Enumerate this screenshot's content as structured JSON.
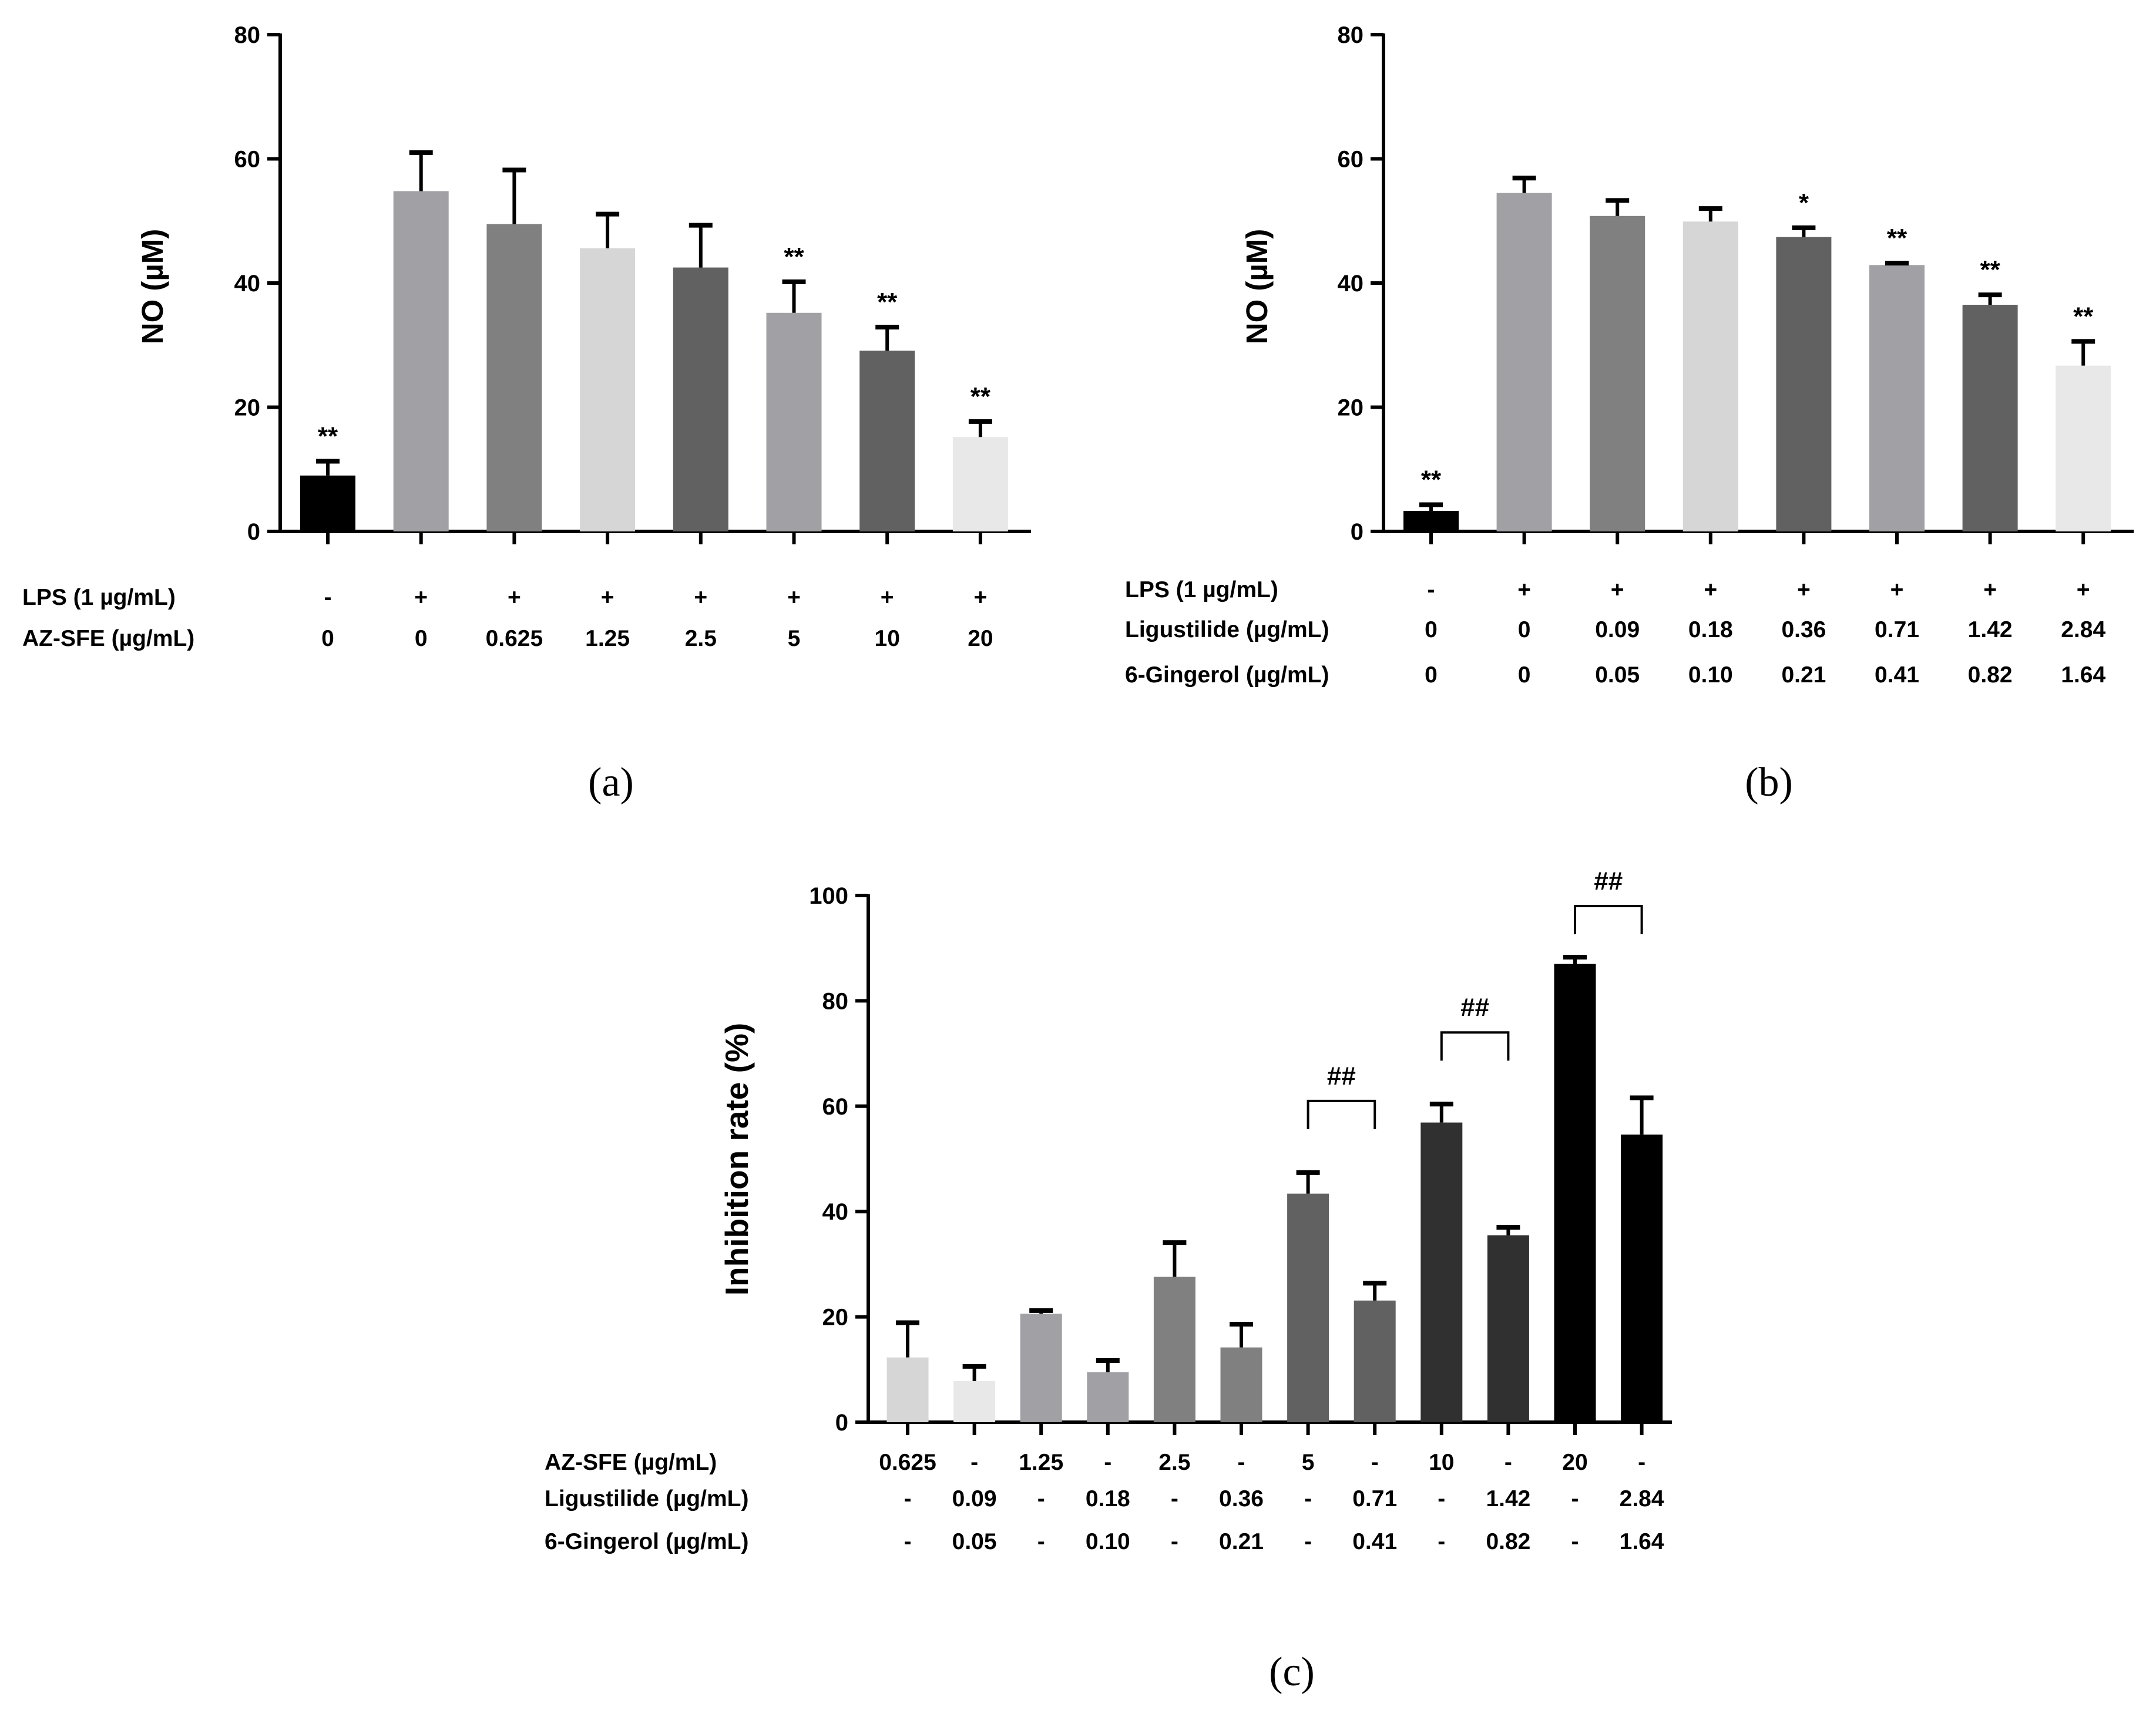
{
  "chart_data": [
    {
      "panel_label": "(a)",
      "type": "bar",
      "ylabel": "NO (µM)",
      "ylim": [
        0,
        80
      ],
      "yticks": [
        "0",
        "20",
        "40",
        "60",
        "80"
      ],
      "bars": [
        {
          "value": 9,
          "error": 2.3,
          "color": "#000000",
          "significance": "**"
        },
        {
          "value": 54.8,
          "error": 6.2,
          "color": "#a0a0a5",
          "significance": ""
        },
        {
          "value": 49.5,
          "error": 8.7,
          "color": "#808080",
          "significance": ""
        },
        {
          "value": 45.6,
          "error": 5.5,
          "color": "#d6d6d6",
          "significance": ""
        },
        {
          "value": 42.5,
          "error": 6.8,
          "color": "#616161",
          "significance": ""
        },
        {
          "value": 35.2,
          "error": 5,
          "color": "#a0a0a5",
          "significance": "**"
        },
        {
          "value": 29.1,
          "error": 3.8,
          "color": "#616161",
          "significance": "**"
        },
        {
          "value": 15.2,
          "error": 2.5,
          "color": "#e8e8e8",
          "significance": "**"
        }
      ],
      "table": [
        {
          "label": "LPS (1 µg/mL)",
          "values": [
            "-",
            "+",
            "+",
            "+",
            "+",
            "+",
            "+",
            "+"
          ]
        },
        {
          "label": "AZ-SFE (µg/mL)",
          "values": [
            "0",
            "0",
            "0.625",
            "1.25",
            "2.5",
            "5",
            "10",
            "20"
          ]
        }
      ]
    },
    {
      "panel_label": "(b)",
      "type": "bar",
      "ylabel": "NO (µM)",
      "ylim": [
        0,
        80
      ],
      "yticks": [
        "0",
        "20",
        "40",
        "60",
        "80"
      ],
      "bars": [
        {
          "value": 3.3,
          "error": 1,
          "color": "#000000",
          "significance": "**"
        },
        {
          "value": 54.5,
          "error": 2.4,
          "color": "#a0a0a5",
          "significance": ""
        },
        {
          "value": 50.8,
          "error": 2.5,
          "color": "#808080",
          "significance": ""
        },
        {
          "value": 49.9,
          "error": 2.1,
          "color": "#d6d6d6",
          "significance": ""
        },
        {
          "value": 47.4,
          "error": 1.5,
          "color": "#616161",
          "significance": "*"
        },
        {
          "value": 42.9,
          "error": 0.3,
          "color": "#a0a0a5",
          "significance": "**"
        },
        {
          "value": 36.5,
          "error": 1.6,
          "color": "#616161",
          "significance": "**"
        },
        {
          "value": 26.7,
          "error": 3.9,
          "color": "#e8e8e8",
          "significance": "**"
        }
      ],
      "table": [
        {
          "label": "LPS (1 µg/mL)",
          "values": [
            "-",
            "+",
            "+",
            "+",
            "+",
            "+",
            "+",
            "+"
          ]
        },
        {
          "label": "Ligustilide (µg/mL)",
          "values": [
            "0",
            "0",
            "0.09",
            "0.18",
            "0.36",
            "0.71",
            "1.42",
            "2.84"
          ]
        },
        {
          "label": "6-Gingerol (µg/mL)",
          "values": [
            "0",
            "0",
            "0.05",
            "0.10",
            "0.21",
            "0.41",
            "0.82",
            "1.64"
          ]
        }
      ]
    },
    {
      "panel_label": "(c)",
      "type": "bar",
      "ylabel": "Inhibition rate (%)",
      "ylim": [
        0,
        100
      ],
      "yticks": [
        "0",
        "20",
        "40",
        "60",
        "80",
        "100"
      ],
      "bars": [
        {
          "value": 12.3,
          "error": 6.6,
          "color": "#d6d6d6"
        },
        {
          "value": 7.8,
          "error": 2.8,
          "color": "#e8e8e8"
        },
        {
          "value": 20.6,
          "error": 0.6,
          "color": "#a0a0a5"
        },
        {
          "value": 9.5,
          "error": 2.2,
          "color": "#a0a0a5"
        },
        {
          "value": 27.6,
          "error": 6.5,
          "color": "#808080"
        },
        {
          "value": 14.2,
          "error": 4.4,
          "color": "#808080"
        },
        {
          "value": 43.4,
          "error": 4,
          "color": "#616161"
        },
        {
          "value": 23.1,
          "error": 3.3,
          "color": "#616161"
        },
        {
          "value": 56.9,
          "error": 3.5,
          "color": "#303030"
        },
        {
          "value": 35.5,
          "error": 1.5,
          "color": "#303030"
        },
        {
          "value": 87,
          "error": 1.3,
          "color": "#000000"
        },
        {
          "value": 54.6,
          "error": 7,
          "color": "#000000"
        }
      ],
      "comparisons": [
        {
          "from_bar": 6,
          "to_bar": 7,
          "top_value": 61,
          "label": "##"
        },
        {
          "from_bar": 8,
          "to_bar": 9,
          "top_value": 74,
          "label": "##"
        },
        {
          "from_bar": 10,
          "to_bar": 11,
          "top_value": 98,
          "label": "##"
        }
      ],
      "table": [
        {
          "label": "AZ-SFE (µg/mL)",
          "values": [
            "0.625",
            "-",
            "1.25",
            "-",
            "2.5",
            "-",
            "5",
            "-",
            "10",
            "-",
            "20",
            "-"
          ]
        },
        {
          "label": "Ligustilide (µg/mL)",
          "values": [
            "-",
            "0.09",
            "-",
            "0.18",
            "-",
            "0.36",
            "-",
            "0.71",
            "-",
            "1.42",
            "-",
            "2.84"
          ]
        },
        {
          "label": "6-Gingerol (µg/mL)",
          "values": [
            "-",
            "0.05",
            "-",
            "0.10",
            "-",
            "0.21",
            "-",
            "0.41",
            "-",
            "0.82",
            "-",
            "1.64"
          ]
        }
      ]
    }
  ]
}
